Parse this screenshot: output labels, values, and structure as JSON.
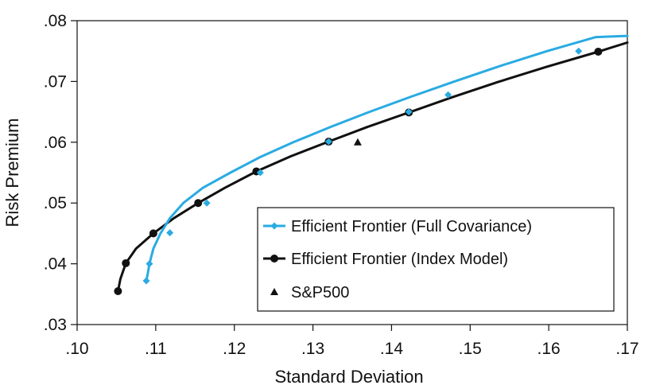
{
  "chart_data": {
    "type": "line",
    "title": "",
    "xlabel": "Standard Deviation",
    "ylabel": "Risk Premium",
    "xlim": [
      0.1,
      0.17
    ],
    "ylim": [
      0.03,
      0.08
    ],
    "xticks": [
      0.1,
      0.11,
      0.12,
      0.13,
      0.14,
      0.15,
      0.16,
      0.17
    ],
    "xtick_labels": [
      ".10",
      ".11",
      ".12",
      ".13",
      ".14",
      ".15",
      ".16",
      ".17"
    ],
    "yticks": [
      0.03,
      0.04,
      0.05,
      0.06,
      0.07,
      0.08
    ],
    "ytick_labels": [
      ".03",
      ".04",
      ".05",
      ".06",
      ".07",
      ".08"
    ],
    "grid": false,
    "legend_position": "bottom-right",
    "series": [
      {
        "name": "Efficient Frontier (Full Covariance)",
        "color": "#29abe2",
        "marker": "diamond",
        "line": [
          [
            0.1088,
            0.0372
          ],
          [
            0.109,
            0.0385
          ],
          [
            0.1092,
            0.04
          ],
          [
            0.1097,
            0.0425
          ],
          [
            0.1106,
            0.045
          ],
          [
            0.1118,
            0.0475
          ],
          [
            0.1135,
            0.05
          ],
          [
            0.116,
            0.0525
          ],
          [
            0.1195,
            0.055
          ],
          [
            0.1232,
            0.0575
          ],
          [
            0.1275,
            0.06
          ],
          [
            0.1322,
            0.0625
          ],
          [
            0.1372,
            0.065
          ],
          [
            0.1425,
            0.0675
          ],
          [
            0.148,
            0.07
          ],
          [
            0.1537,
            0.0725
          ],
          [
            0.1598,
            0.075
          ],
          [
            0.166,
            0.0773
          ],
          [
            0.17,
            0.0775
          ]
        ],
        "points": [
          [
            0.1088,
            0.0372
          ],
          [
            0.1092,
            0.04
          ],
          [
            0.1118,
            0.0451
          ],
          [
            0.1165,
            0.05
          ],
          [
            0.1233,
            0.055
          ],
          [
            0.132,
            0.0601
          ],
          [
            0.1422,
            0.065
          ],
          [
            0.1472,
            0.0678
          ],
          [
            0.1638,
            0.075
          ]
        ]
      },
      {
        "name": "Efficient Frontier (Index Model)",
        "color": "#111111",
        "marker": "circle",
        "line": [
          [
            0.1052,
            0.0355
          ],
          [
            0.1055,
            0.0375
          ],
          [
            0.1062,
            0.0401
          ],
          [
            0.1075,
            0.0425
          ],
          [
            0.1097,
            0.045
          ],
          [
            0.1123,
            0.0475
          ],
          [
            0.1154,
            0.05
          ],
          [
            0.1188,
            0.0525
          ],
          [
            0.1228,
            0.0552
          ],
          [
            0.1272,
            0.0577
          ],
          [
            0.132,
            0.0601
          ],
          [
            0.1369,
            0.0625
          ],
          [
            0.1422,
            0.0649
          ],
          [
            0.1477,
            0.0674
          ],
          [
            0.1535,
            0.0699
          ],
          [
            0.1597,
            0.0724
          ],
          [
            0.1663,
            0.0749
          ],
          [
            0.17,
            0.0764
          ]
        ],
        "points": [
          [
            0.1052,
            0.0355
          ],
          [
            0.1062,
            0.0401
          ],
          [
            0.1097,
            0.045
          ],
          [
            0.1154,
            0.05
          ],
          [
            0.1228,
            0.0552
          ],
          [
            0.132,
            0.0601
          ],
          [
            0.1422,
            0.0649
          ],
          [
            0.1663,
            0.0749
          ]
        ]
      }
    ],
    "markers": [
      {
        "name": "S&P500",
        "symbol": "triangle",
        "x": 0.1357,
        "y": 0.06
      }
    ]
  }
}
